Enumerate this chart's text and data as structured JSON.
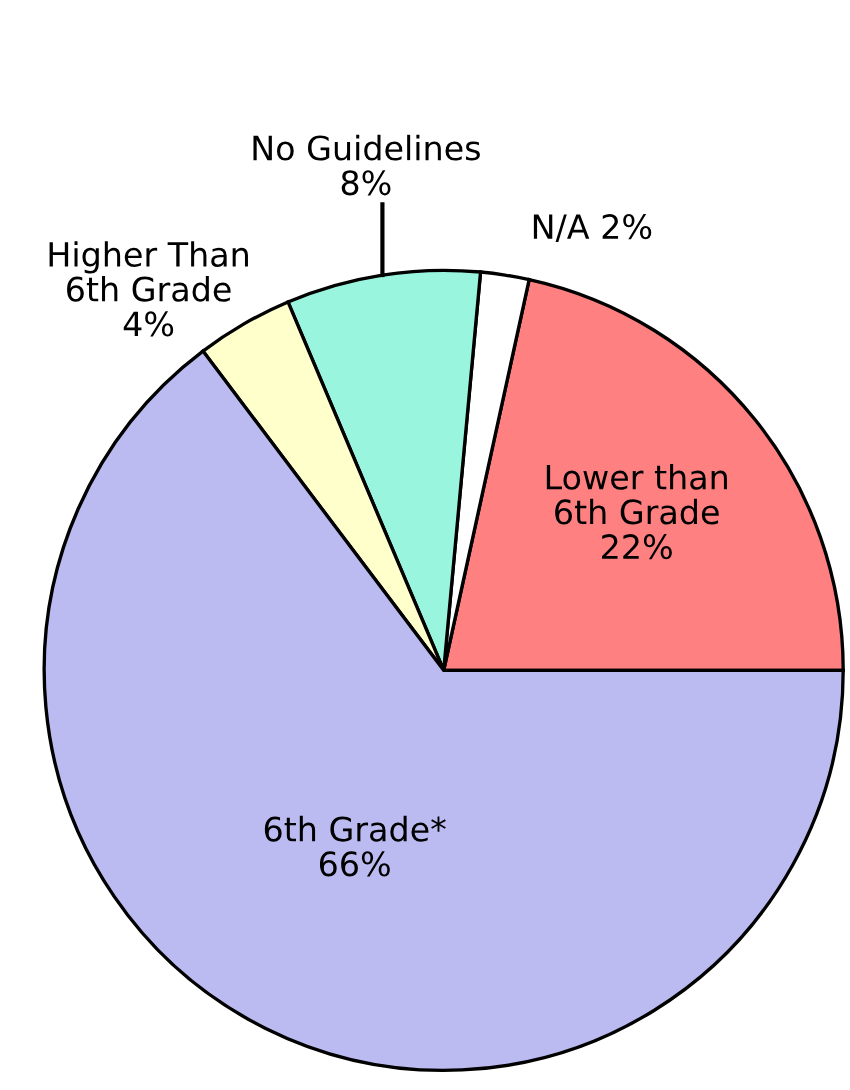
{
  "chart_data": {
    "type": "pie",
    "categories": [
      "Lower than\n6th Grade",
      "N/A",
      "No Guidelines",
      "Higher Than\n6th Grade",
      "6th Grade*"
    ],
    "values": [
      22,
      2,
      8,
      4,
      66
    ],
    "value_labels": [
      "22%",
      "2%",
      "8%",
      "4%",
      "66%"
    ],
    "colors": [
      "#ff8080",
      "#ffffff",
      "#99f5dd",
      "#ffffcc",
      "#bbbbf2"
    ]
  }
}
